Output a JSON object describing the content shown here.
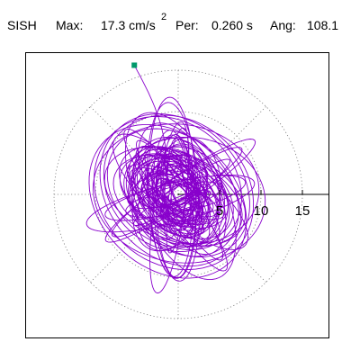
{
  "header": {
    "station": "SISH",
    "max_label": "Max:",
    "max_value": "17.3 cm/s",
    "max_exponent": "2",
    "per_label": "Per:",
    "per_value": "0.260 s",
    "ang_label": "Ang:",
    "ang_value": "108.1"
  },
  "chart_data": {
    "type": "polar-particle-motion",
    "units": "cm/s^2",
    "max_amplitude": 17.3,
    "period_s": 0.26,
    "angle_deg": 108.1,
    "radial_ticks": [
      5,
      10,
      15
    ],
    "radial_tick_labels": [
      "5",
      "10",
      "15"
    ],
    "grid_circles": [
      5,
      10,
      15
    ],
    "grid_spoke_angles_deg": [
      0,
      45,
      90,
      135,
      180,
      225,
      270,
      315
    ],
    "grid": true,
    "grid_style": "dotted",
    "trace_color": "#8800cc",
    "marker_color": "#00996b",
    "trace_end_marker": [
      -5.3,
      15.6
    ]
  }
}
